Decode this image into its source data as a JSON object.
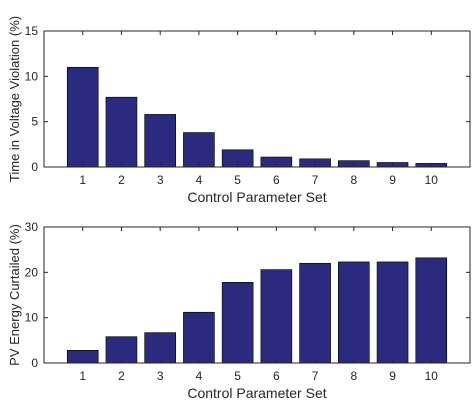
{
  "chart_data": [
    {
      "type": "bar",
      "categories": [
        "1",
        "2",
        "3",
        "4",
        "5",
        "6",
        "7",
        "8",
        "9",
        "10"
      ],
      "values": [
        11.0,
        7.7,
        5.8,
        3.8,
        1.9,
        1.1,
        0.9,
        0.7,
        0.5,
        0.4
      ],
      "xlabel": "Control Parameter Set",
      "ylabel": "Time in Voltage Violation (%)",
      "ylim": [
        0,
        15
      ],
      "yticks": [
        0,
        5,
        10,
        15
      ],
      "grid": false,
      "bar_color": "#2b2a7e"
    },
    {
      "type": "bar",
      "categories": [
        "1",
        "2",
        "3",
        "4",
        "5",
        "6",
        "7",
        "8",
        "9",
        "10"
      ],
      "values": [
        2.8,
        5.8,
        6.7,
        11.2,
        17.8,
        20.6,
        22.0,
        22.3,
        22.3,
        23.2
      ],
      "xlabel": "Control Parameter Set",
      "ylabel": "PV Energy Curtailed (%)",
      "ylim": [
        0,
        30
      ],
      "yticks": [
        0,
        10,
        20,
        30
      ],
      "grid": false,
      "bar_color": "#2b2a7e"
    }
  ]
}
